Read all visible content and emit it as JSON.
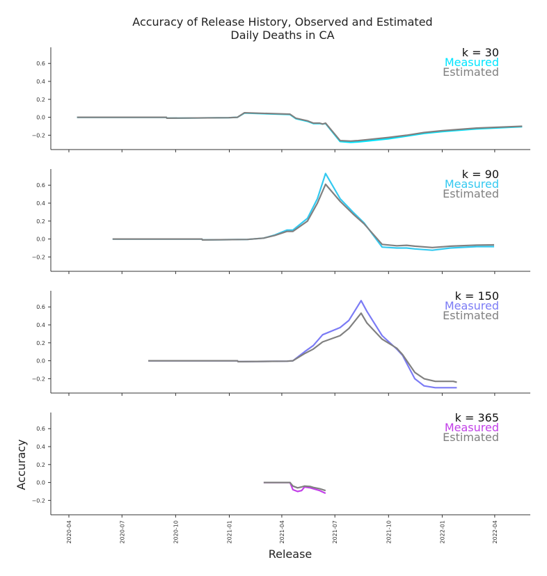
{
  "chart_data": {
    "type": "line",
    "title": "Accuracy of Release History, Observed and Estimated\nDaily Deaths in CA",
    "xlabel": "Release",
    "ylabel": "Accuracy",
    "x_ticks": [
      "2020-04",
      "2020-07",
      "2020-10",
      "2021-01",
      "2021-04",
      "2021-07",
      "2021-10",
      "2022-01",
      "2022-04"
    ],
    "x_range": [
      "2020-03-01",
      "2022-06-01"
    ],
    "y_ticks": [
      "0.6",
      "0.4",
      "0.2",
      "0.0",
      "−0.2"
    ],
    "y_range": [
      -0.36,
      0.78
    ],
    "grid": false,
    "legend_placement": "top-right",
    "estimated_color": "#808080",
    "panels": [
      {
        "k_label": "k = 30",
        "measured_label": "Measured",
        "estimated_label": "Estimated",
        "measured_color": "#00e5ff",
        "series": [
          {
            "name": "Measured",
            "points": [
              [
                "2020-04-15",
                0.0
              ],
              [
                "2020-09-15",
                0.0
              ],
              [
                "2020-09-16",
                -0.01
              ],
              [
                "2020-12-31",
                -0.005
              ],
              [
                "2021-01-15",
                0.0
              ],
              [
                "2021-01-27",
                0.047
              ],
              [
                "2021-04-15",
                0.03
              ],
              [
                "2021-04-25",
                -0.015
              ],
              [
                "2021-05-15",
                -0.045
              ],
              [
                "2021-05-25",
                -0.07
              ],
              [
                "2021-06-05",
                -0.07
              ],
              [
                "2021-06-10",
                -0.075
              ],
              [
                "2021-06-15",
                -0.07
              ],
              [
                "2021-07-10",
                -0.27
              ],
              [
                "2021-07-28",
                -0.28
              ],
              [
                "2021-08-10",
                -0.275
              ],
              [
                "2021-09-01",
                -0.26
              ],
              [
                "2021-10-01",
                -0.24
              ],
              [
                "2021-11-01",
                -0.21
              ],
              [
                "2021-12-01",
                -0.18
              ],
              [
                "2022-01-01",
                -0.16
              ],
              [
                "2022-03-01",
                -0.13
              ],
              [
                "2022-05-18",
                -0.105
              ]
            ]
          },
          {
            "name": "Estimated",
            "points": [
              [
                "2020-04-15",
                0.0
              ],
              [
                "2020-09-15",
                0.0
              ],
              [
                "2020-09-16",
                -0.01
              ],
              [
                "2020-12-31",
                -0.005
              ],
              [
                "2021-01-15",
                0.0
              ],
              [
                "2021-01-27",
                0.05
              ],
              [
                "2021-04-15",
                0.035
              ],
              [
                "2021-04-25",
                -0.01
              ],
              [
                "2021-05-15",
                -0.04
              ],
              [
                "2021-05-25",
                -0.065
              ],
              [
                "2021-06-05",
                -0.065
              ],
              [
                "2021-06-10",
                -0.075
              ],
              [
                "2021-06-15",
                -0.065
              ],
              [
                "2021-07-10",
                -0.26
              ],
              [
                "2021-07-28",
                -0.265
              ],
              [
                "2021-08-10",
                -0.26
              ],
              [
                "2021-09-01",
                -0.245
              ],
              [
                "2021-10-01",
                -0.225
              ],
              [
                "2021-11-01",
                -0.2
              ],
              [
                "2021-12-01",
                -0.17
              ],
              [
                "2022-01-01",
                -0.15
              ],
              [
                "2022-03-01",
                -0.12
              ],
              [
                "2022-05-18",
                -0.1
              ]
            ]
          }
        ]
      },
      {
        "k_label": "k = 90",
        "measured_label": "Measured",
        "estimated_label": "Estimated",
        "measured_color": "#33c9f0",
        "series": [
          {
            "name": "Measured",
            "points": [
              [
                "2020-06-15",
                0.0
              ],
              [
                "2020-11-15",
                0.0
              ],
              [
                "2020-11-16",
                -0.01
              ],
              [
                "2021-02-01",
                -0.005
              ],
              [
                "2021-03-01",
                0.01
              ],
              [
                "2021-03-20",
                0.045
              ],
              [
                "2021-04-10",
                0.1
              ],
              [
                "2021-04-20",
                0.1
              ],
              [
                "2021-05-15",
                0.23
              ],
              [
                "2021-06-01",
                0.45
              ],
              [
                "2021-06-15",
                0.73
              ],
              [
                "2021-07-10",
                0.45
              ],
              [
                "2021-08-01",
                0.3
              ],
              [
                "2021-08-20",
                0.18
              ],
              [
                "2021-09-20",
                -0.09
              ],
              [
                "2021-10-15",
                -0.1
              ],
              [
                "2021-11-01",
                -0.1
              ],
              [
                "2021-11-15",
                -0.11
              ],
              [
                "2021-12-15",
                -0.125
              ],
              [
                "2022-01-15",
                -0.1
              ],
              [
                "2022-03-01",
                -0.085
              ],
              [
                "2022-03-31",
                -0.085
              ]
            ]
          },
          {
            "name": "Estimated",
            "points": [
              [
                "2020-06-15",
                0.0
              ],
              [
                "2020-11-15",
                0.0
              ],
              [
                "2020-11-16",
                -0.01
              ],
              [
                "2021-02-01",
                -0.005
              ],
              [
                "2021-03-01",
                0.01
              ],
              [
                "2021-03-20",
                0.04
              ],
              [
                "2021-04-10",
                0.085
              ],
              [
                "2021-04-20",
                0.085
              ],
              [
                "2021-05-15",
                0.2
              ],
              [
                "2021-06-01",
                0.4
              ],
              [
                "2021-06-15",
                0.61
              ],
              [
                "2021-07-10",
                0.42
              ],
              [
                "2021-08-01",
                0.28
              ],
              [
                "2021-08-20",
                0.17
              ],
              [
                "2021-09-20",
                -0.06
              ],
              [
                "2021-10-15",
                -0.075
              ],
              [
                "2021-11-01",
                -0.07
              ],
              [
                "2021-11-15",
                -0.08
              ],
              [
                "2021-12-15",
                -0.095
              ],
              [
                "2022-01-15",
                -0.08
              ],
              [
                "2022-03-01",
                -0.068
              ],
              [
                "2022-03-31",
                -0.065
              ]
            ]
          }
        ]
      },
      {
        "k_label": "k = 150",
        "measured_label": "Measured",
        "estimated_label": "Estimated",
        "measured_color": "#7b7bf5",
        "series": [
          {
            "name": "Measured",
            "points": [
              [
                "2020-08-15",
                0.0
              ],
              [
                "2021-01-15",
                0.0
              ],
              [
                "2021-01-16",
                -0.01
              ],
              [
                "2021-04-10",
                -0.005
              ],
              [
                "2021-04-20",
                0.0
              ],
              [
                "2021-05-10",
                0.1
              ],
              [
                "2021-05-25",
                0.17
              ],
              [
                "2021-06-10",
                0.29
              ],
              [
                "2021-07-10",
                0.37
              ],
              [
                "2021-07-25",
                0.45
              ],
              [
                "2021-08-15",
                0.67
              ],
              [
                "2021-08-25",
                0.55
              ],
              [
                "2021-09-20",
                0.28
              ],
              [
                "2021-10-15",
                0.13
              ],
              [
                "2021-10-25",
                0.06
              ],
              [
                "2021-11-15",
                -0.2
              ],
              [
                "2021-12-01",
                -0.28
              ],
              [
                "2021-12-20",
                -0.3
              ],
              [
                "2022-01-10",
                -0.3
              ],
              [
                "2022-01-20",
                -0.3
              ],
              [
                "2022-01-26",
                -0.3
              ]
            ]
          },
          {
            "name": "Estimated",
            "points": [
              [
                "2020-08-15",
                0.0
              ],
              [
                "2021-01-15",
                0.0
              ],
              [
                "2021-01-16",
                -0.01
              ],
              [
                "2021-04-10",
                -0.005
              ],
              [
                "2021-04-20",
                0.0
              ],
              [
                "2021-05-10",
                0.08
              ],
              [
                "2021-05-25",
                0.13
              ],
              [
                "2021-06-10",
                0.21
              ],
              [
                "2021-07-10",
                0.28
              ],
              [
                "2021-07-25",
                0.36
              ],
              [
                "2021-08-15",
                0.53
              ],
              [
                "2021-08-25",
                0.42
              ],
              [
                "2021-09-20",
                0.24
              ],
              [
                "2021-10-15",
                0.14
              ],
              [
                "2021-10-25",
                0.07
              ],
              [
                "2021-11-15",
                -0.13
              ],
              [
                "2021-12-01",
                -0.2
              ],
              [
                "2021-12-20",
                -0.23
              ],
              [
                "2022-01-10",
                -0.23
              ],
              [
                "2022-01-20",
                -0.23
              ],
              [
                "2022-01-26",
                -0.24
              ]
            ]
          }
        ]
      },
      {
        "k_label": "k = 365",
        "measured_label": "Measured",
        "estimated_label": "Estimated",
        "measured_color": "#c23fe8",
        "series": [
          {
            "name": "Measured",
            "points": [
              [
                "2021-03-01",
                0.0
              ],
              [
                "2021-04-15",
                0.0
              ],
              [
                "2021-04-20",
                -0.08
              ],
              [
                "2021-04-28",
                -0.1
              ],
              [
                "2021-05-05",
                -0.09
              ],
              [
                "2021-05-10",
                -0.05
              ],
              [
                "2021-05-20",
                -0.06
              ],
              [
                "2021-05-25",
                -0.07
              ],
              [
                "2021-06-05",
                -0.09
              ],
              [
                "2021-06-15",
                -0.12
              ]
            ]
          },
          {
            "name": "Estimated",
            "points": [
              [
                "2021-03-01",
                0.0
              ],
              [
                "2021-04-15",
                0.0
              ],
              [
                "2021-04-20",
                -0.04
              ],
              [
                "2021-04-28",
                -0.06
              ],
              [
                "2021-05-05",
                -0.05
              ],
              [
                "2021-05-10",
                -0.04
              ],
              [
                "2021-05-20",
                -0.045
              ],
              [
                "2021-05-25",
                -0.055
              ],
              [
                "2021-06-05",
                -0.07
              ],
              [
                "2021-06-15",
                -0.09
              ]
            ]
          }
        ]
      }
    ]
  }
}
